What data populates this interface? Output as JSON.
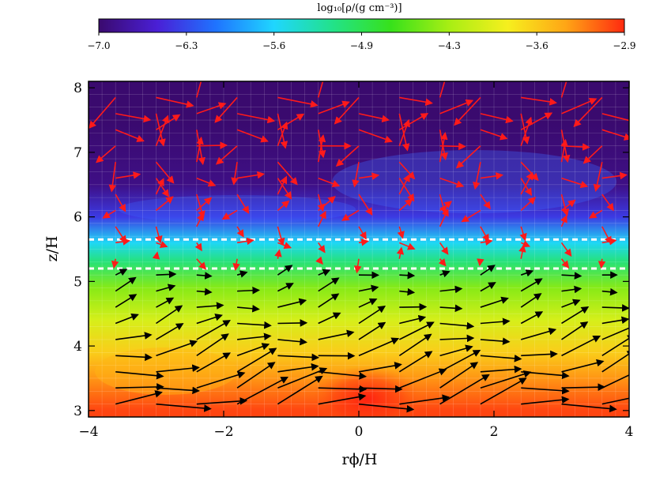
{
  "chart_data": {
    "type": "heatmap",
    "title": "",
    "xlabel": "rϕ/H",
    "ylabel": "z/H",
    "xlim": [
      -4,
      4
    ],
    "ylim": [
      2.9,
      8.1
    ],
    "x_ticks": [
      -4,
      -2,
      0,
      2,
      4
    ],
    "x_tick_labels": [
      "−4",
      "−2",
      "0",
      "2",
      "4"
    ],
    "y_ticks": [
      3,
      4,
      5,
      6,
      7,
      8
    ],
    "y_tick_labels": [
      "3",
      "4",
      "5",
      "6",
      "7",
      "8"
    ],
    "grid": true,
    "colorbar": {
      "label": "log₁₀[ρ/(g cm⁻³)]",
      "range": [
        -7.0,
        -2.9
      ],
      "tick_labels": [
        "−7.0",
        "−6.3",
        "−5.6",
        "−4.9",
        "−4.3",
        "−3.6",
        "−2.9"
      ],
      "colors": [
        "#3a0a6e",
        "#4a1fd6",
        "#1f73ff",
        "#1fd6ff",
        "#22e28a",
        "#37e11b",
        "#a8ee14",
        "#f6ef1e",
        "#ffa515",
        "#ff2a10"
      ]
    },
    "density_profile": {
      "z": [
        3.0,
        3.5,
        3.9,
        4.4,
        4.9,
        5.3,
        5.6,
        6.0,
        6.5,
        7.5,
        8.0
      ],
      "log_rho": [
        -3.0,
        -3.3,
        -3.6,
        -4.0,
        -4.4,
        -5.1,
        -5.6,
        -6.4,
        -6.9,
        -7.0,
        -7.0
      ]
    },
    "high_density_region": {
      "x": 0.1,
      "z": 3.25,
      "log_rho": -2.9
    },
    "reference_lines": [
      {
        "z": 5.65,
        "style": "dashed",
        "color": "#ffffff"
      },
      {
        "z": 5.2,
        "style": "dashed",
        "color": "#ffffff"
      }
    ],
    "vector_field": {
      "rows_z": [
        3.1,
        3.35,
        3.6,
        3.85,
        4.1,
        4.35,
        4.6,
        4.85,
        5.1,
        5.35,
        5.6,
        5.85,
        6.1,
        6.35,
        6.6,
        6.85,
        7.1,
        7.35,
        7.6,
        7.85
      ],
      "cols_x": [
        -3.6,
        -3.0,
        -2.4,
        -1.8,
        -1.2,
        -0.6,
        0.0,
        0.6,
        1.2,
        1.8,
        2.4,
        3.0,
        3.6
      ],
      "colors": {
        "below_5.2": "#000000",
        "above_5.2": "#ff1a1a"
      }
    }
  }
}
